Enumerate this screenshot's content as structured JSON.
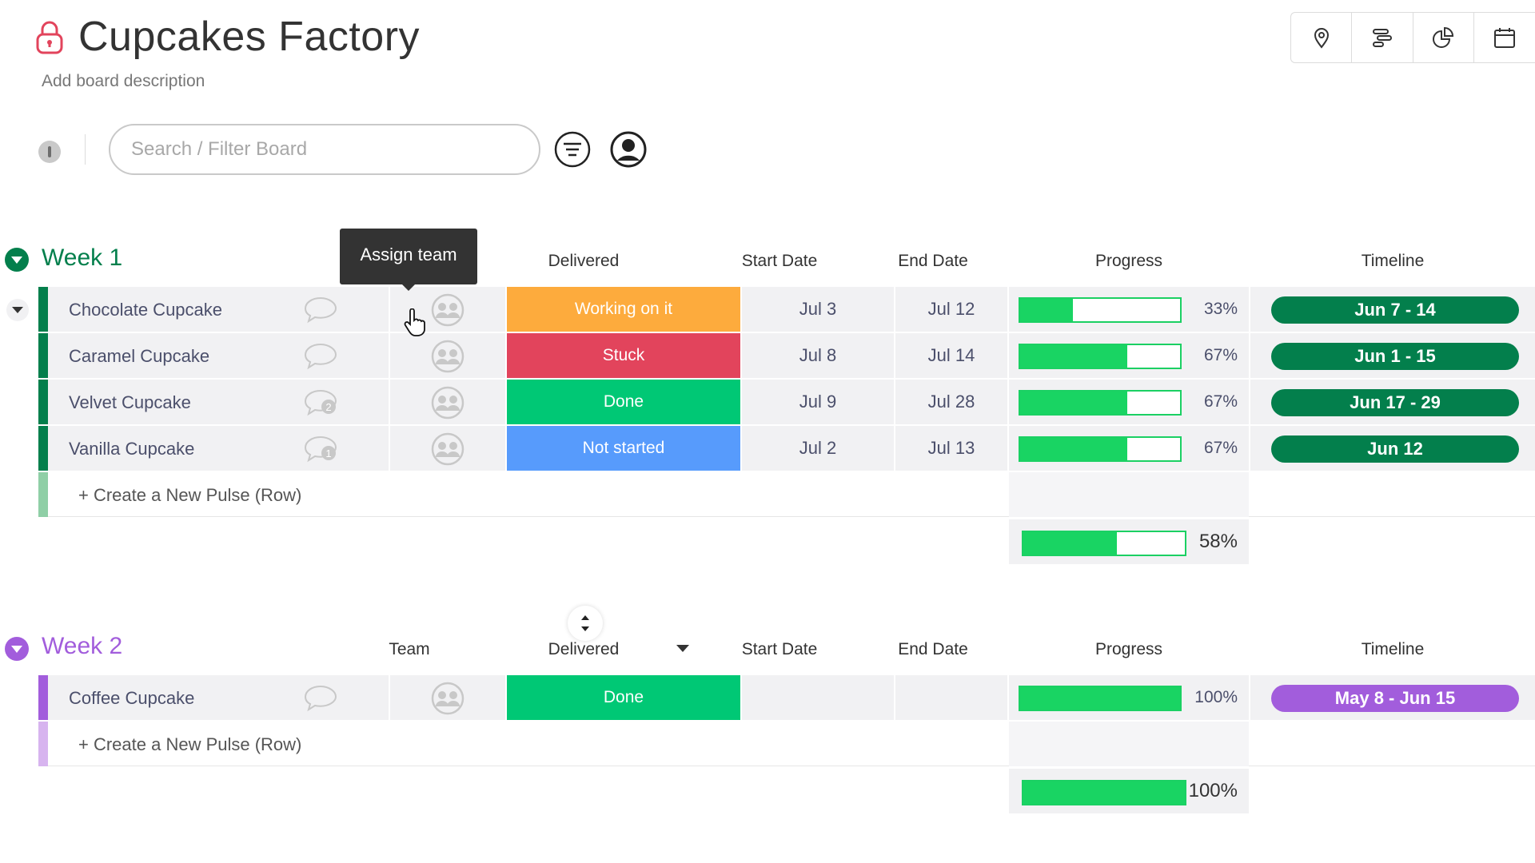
{
  "header": {
    "title": "Cupcakes Factory",
    "description": "Add board description"
  },
  "view_icons": [
    "map-pin-icon",
    "gantt-icon",
    "pie-chart-icon",
    "calendar-icon"
  ],
  "toolbar": {
    "search_placeholder": "Search / Filter Board"
  },
  "tooltip": {
    "text": "Assign team"
  },
  "groups": [
    {
      "title": "Week 1",
      "color": "#037f4c",
      "columns": {
        "team": "",
        "delivered": "Delivered",
        "start_date": "Start Date",
        "end_date": "End Date",
        "progress": "Progress",
        "timeline": "Timeline"
      },
      "rows": [
        {
          "name": "Chocolate Cupcake",
          "comments": "",
          "status": "Working on it",
          "status_color": "#fdab3d",
          "start": "Jul 3",
          "end": "Jul 12",
          "progress": 33,
          "progress_label": "33%",
          "timeline": "Jun 7 - 14"
        },
        {
          "name": "Caramel Cupcake",
          "comments": "",
          "status": "Stuck",
          "status_color": "#e2445c",
          "start": "Jul 8",
          "end": "Jul 14",
          "progress": 67,
          "progress_label": "67%",
          "timeline": "Jun 1 - 15"
        },
        {
          "name": "Velvet Cupcake",
          "comments": "2",
          "status": "Done",
          "status_color": "#00c875",
          "start": "Jul 9",
          "end": "Jul 28",
          "progress": 67,
          "progress_label": "67%",
          "timeline": "Jun 17 - 29"
        },
        {
          "name": "Vanilla Cupcake",
          "comments": "1",
          "status": "Not started",
          "status_color": "#579bfc",
          "start": "Jul 2",
          "end": "Jul 13",
          "progress": 67,
          "progress_label": "67%",
          "timeline": "Jun 12"
        }
      ],
      "add_row": "+ Create a New Pulse (Row)",
      "summary_progress": 58,
      "summary_label": "58%"
    },
    {
      "title": "Week 2",
      "color": "#a25ddc",
      "columns": {
        "team": "Team",
        "delivered": "Delivered",
        "start_date": "Start Date",
        "end_date": "End Date",
        "progress": "Progress",
        "timeline": "Timeline"
      },
      "rows": [
        {
          "name": "Coffee Cupcake",
          "comments": "",
          "status": "Done",
          "status_color": "#00c875",
          "start": "",
          "end": "",
          "progress": 100,
          "progress_label": "100%",
          "timeline": "May 8 - Jun 15"
        }
      ],
      "add_row": "+ Create a New Pulse (Row)",
      "summary_progress": 100,
      "summary_label": "100%"
    }
  ]
}
